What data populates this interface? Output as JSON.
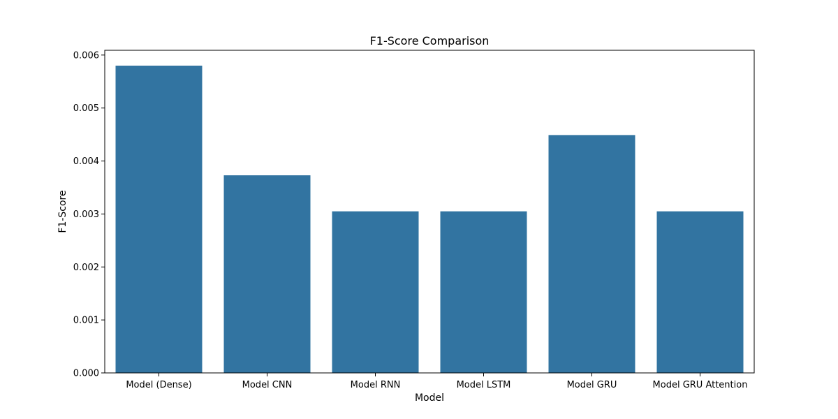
{
  "chart_data": {
    "type": "bar",
    "title": "F1-Score Comparison",
    "xlabel": "Model",
    "ylabel": "F1-Score",
    "categories": [
      "Model (Dense)",
      "Model CNN",
      "Model RNN",
      "Model LSTM",
      "Model GRU",
      "Model GRU Attention"
    ],
    "values": [
      0.0058,
      0.00373,
      0.00305,
      0.00305,
      0.00449,
      0.00305
    ],
    "ylim": [
      0,
      0.00609
    ],
    "yticks": [
      0,
      0.001,
      0.002,
      0.003,
      0.004,
      0.005,
      0.006
    ],
    "ytick_labels": [
      "0.000",
      "0.001",
      "0.002",
      "0.003",
      "0.004",
      "0.005",
      "0.006"
    ],
    "bar_color": "#3274a1",
    "grid": false,
    "legend": "none"
  }
}
